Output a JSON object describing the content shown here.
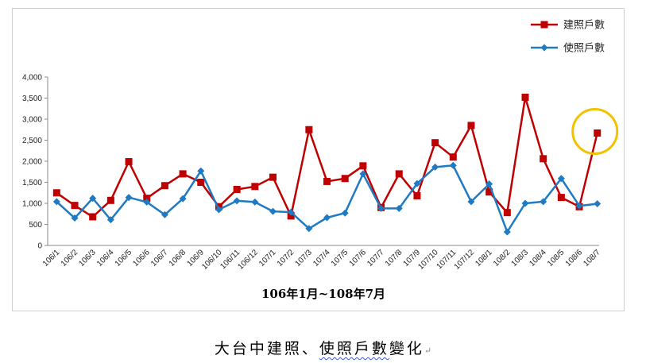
{
  "chart_data": {
    "type": "line",
    "title": "",
    "xlabel": "106年1月~108年7月",
    "ylabel": "",
    "ylim": [
      0,
      4000
    ],
    "yticks": [
      "0",
      "500",
      "1,000",
      "1,500",
      "2,000",
      "2,500",
      "3,000",
      "3,500",
      "4,000"
    ],
    "ytick_values": [
      0,
      500,
      1000,
      1500,
      2000,
      2500,
      3000,
      3500,
      4000
    ],
    "grid": false,
    "legend_position": "top-right",
    "categories": [
      "106/1",
      "106/2",
      "106/3",
      "106/4",
      "106/5",
      "106/6",
      "106/7",
      "106/8",
      "106/9",
      "106/10",
      "106/11",
      "106/12",
      "107/1",
      "107/2",
      "107/3",
      "107/4",
      "107/5",
      "107/6",
      "107/7",
      "107/8",
      "107/9",
      "107/10",
      "107/11",
      "107/12",
      "108/1",
      "108/2",
      "108/3",
      "108/4",
      "108/5",
      "108/6",
      "108/7"
    ],
    "series": [
      {
        "name": "建照戶數",
        "color": "#c00000",
        "marker": "square",
        "values": [
          1250,
          950,
          680,
          1070,
          1990,
          1120,
          1420,
          1700,
          1500,
          920,
          1330,
          1400,
          1620,
          700,
          2750,
          1520,
          1590,
          1890,
          900,
          1700,
          1180,
          2440,
          2100,
          2850,
          1270,
          780,
          3520,
          2060,
          1140,
          920,
          2670
        ]
      },
      {
        "name": "使照戶數",
        "color": "#1f7ac4",
        "marker": "diamond",
        "values": [
          1040,
          650,
          1120,
          610,
          1140,
          1030,
          730,
          1110,
          1770,
          850,
          1060,
          1030,
          810,
          790,
          400,
          660,
          770,
          1700,
          880,
          880,
          1470,
          1860,
          1900,
          1040,
          1460,
          320,
          1000,
          1040,
          1590,
          940,
          990
        ]
      }
    ],
    "annotations": [
      {
        "type": "circle",
        "color": "#f2c100",
        "category": "108/7"
      }
    ]
  },
  "caption": {
    "text_before": "大台中建照、",
    "text_squiggle": "使照戶數",
    "text_after": "變化",
    "para_mark": "↵"
  }
}
